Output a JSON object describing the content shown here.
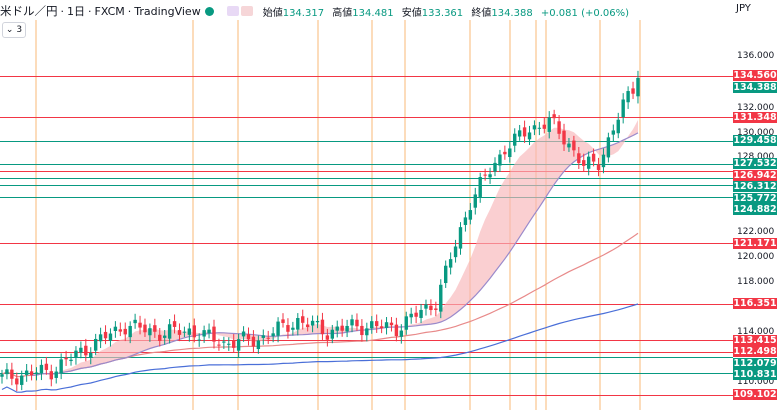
{
  "header": {
    "symbol": "米ドル／円",
    "timeframe": "1日",
    "broker": "FXCM",
    "platform": "TradingView",
    "open_label": "始値",
    "open": "134.317",
    "high_label": "高値",
    "high": "134.481",
    "low_label": "安値",
    "low": "133.361",
    "close_label": "終値",
    "close": "134.388",
    "change": "+0.081 (+0.06%)",
    "indicator_count": "3"
  },
  "axis": {
    "currency": "JPY",
    "ticks": [
      "136.000",
      "132.000",
      "130.000",
      "128.000",
      "124.000",
      "122.000",
      "120.000",
      "118.000",
      "114.000",
      "110.000"
    ]
  },
  "price_labels": [
    {
      "text": "134.560",
      "color": "#f23645"
    },
    {
      "text": "134.388",
      "color": "#089981"
    },
    {
      "text": "131.348",
      "color": "#f23645"
    },
    {
      "text": "129.458",
      "color": "#089981"
    },
    {
      "text": "127.532",
      "color": "#089981"
    },
    {
      "text": "126.942",
      "color": "#f23645"
    },
    {
      "text": "126.312",
      "color": "#089981"
    },
    {
      "text": "125.772",
      "color": "#089981"
    },
    {
      "text": "124.882",
      "color": "#089981"
    },
    {
      "text": "121.171",
      "color": "#f23645"
    },
    {
      "text": "116.351",
      "color": "#f23645"
    },
    {
      "text": "113.415",
      "color": "#f23645"
    },
    {
      "text": "112.498",
      "color": "#f23645"
    },
    {
      "text": "112.079",
      "color": "#089981"
    },
    {
      "text": "110.831",
      "color": "#089981"
    },
    {
      "text": "109.102",
      "color": "#f23645"
    }
  ],
  "colors": {
    "up": "#089981",
    "down": "#f23645",
    "red_line": "#f23645",
    "green_line": "#089981",
    "vline": "#f7a24a",
    "cloud": "#f7b6b8",
    "ma_mid": "#e88a8a",
    "ma_slow": "#4a6fd8",
    "ma_fast": "#9a8acb"
  },
  "chart_data": {
    "type": "candlestick",
    "y_unit": "JPY",
    "ylim": [
      109,
      138
    ],
    "last_close": 134.388,
    "horizontal_levels": [
      134.56,
      131.348,
      129.458,
      127.532,
      126.942,
      126.312,
      125.772,
      124.882,
      121.171,
      116.351,
      113.415,
      112.498,
      112.079,
      110.831,
      109.102
    ]
  }
}
